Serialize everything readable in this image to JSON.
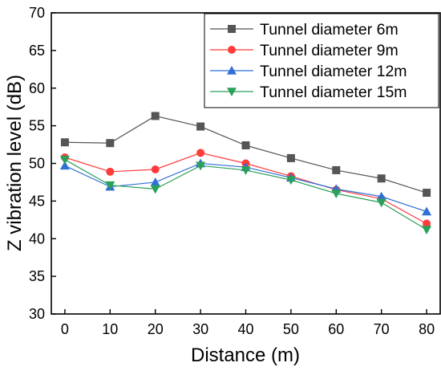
{
  "chart_data": {
    "type": "line",
    "title": "",
    "xlabel": "Distance (m)",
    "ylabel": "Z vibration level (dB)",
    "x": [
      0,
      10,
      20,
      30,
      40,
      50,
      60,
      70,
      80
    ],
    "xlim": [
      -3,
      83
    ],
    "ylim": [
      30,
      70
    ],
    "xticks": [
      0,
      10,
      20,
      30,
      40,
      50,
      60,
      70,
      80
    ],
    "yticks": [
      30,
      35,
      40,
      45,
      50,
      55,
      60,
      65,
      70
    ],
    "grid": false,
    "legend_position": "top-right",
    "series": [
      {
        "name": "Tunnel diameter 6m",
        "color": "#555555",
        "marker": "square",
        "values": [
          52.8,
          52.7,
          56.3,
          54.9,
          52.4,
          50.7,
          49.1,
          48.0,
          46.1
        ]
      },
      {
        "name": "Tunnel diameter 9m",
        "color": "#ff3b3b",
        "marker": "circle",
        "values": [
          50.8,
          48.9,
          49.2,
          51.4,
          50.0,
          48.3,
          46.5,
          45.3,
          42.0
        ]
      },
      {
        "name": "Tunnel diameter 12m",
        "color": "#2f6fd6",
        "marker": "triangle-up",
        "values": [
          49.7,
          46.9,
          47.5,
          50.0,
          49.5,
          48.1,
          46.6,
          45.6,
          43.6
        ]
      },
      {
        "name": "Tunnel diameter 15m",
        "color": "#2aa05a",
        "marker": "triangle-down",
        "values": [
          50.5,
          47.1,
          46.6,
          49.7,
          49.1,
          47.8,
          46.0,
          44.8,
          41.2
        ]
      }
    ]
  }
}
